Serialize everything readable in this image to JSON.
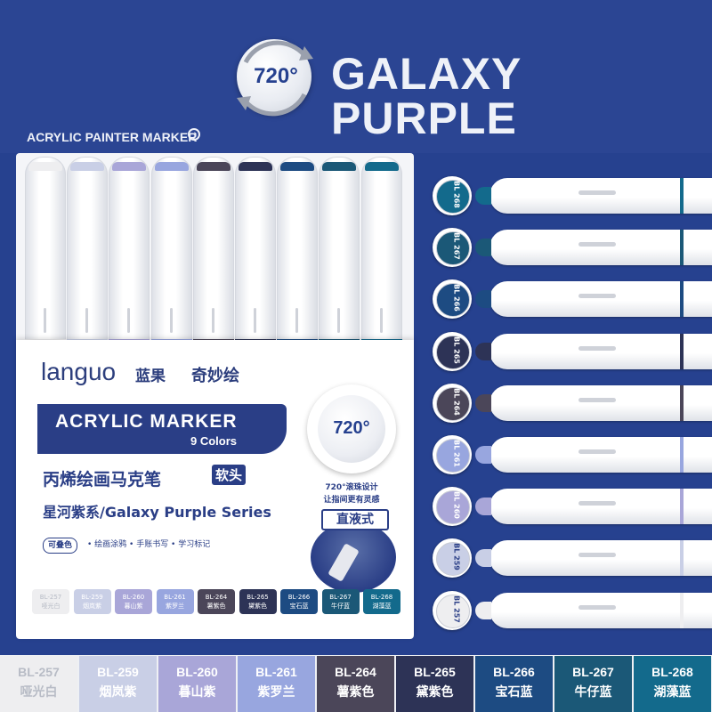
{
  "header": {
    "badge_text": "720°",
    "title": "GALAXY PURPLE",
    "subtitle": "ACRYLIC PAINTER MARKER",
    "subtitle_icon": "arrow-circle-icon"
  },
  "package": {
    "logo": "languo",
    "logo_cn": "蓝果",
    "brand2": "奇妙绘",
    "banner_main": "ACRYLIC MARKER",
    "banner_sub": "9 Colors",
    "cn_title": "丙烯绘画马克笔",
    "cn_tag": "软头",
    "series": "星河紫系/Galaxy Purple Series",
    "feature_chip": "可叠色",
    "features": "• 绘画涂鸦  • 手账书写  • 学习标记",
    "badge_720": "720°",
    "badge_line1": "720°滚珠设计",
    "badge_line2": "让指间更有灵感",
    "badge_box": "直液式"
  },
  "colors": [
    {
      "code": "BL-257",
      "name": "哑光白",
      "hex": "#eeeef0",
      "text": "#b8bcc6"
    },
    {
      "code": "BL-259",
      "name": "烟岚紫",
      "hex": "#c9cfe6",
      "text": "#ffffff"
    },
    {
      "code": "BL-260",
      "name": "暮山紫",
      "hex": "#a9a6d8",
      "text": "#ffffff"
    },
    {
      "code": "BL-261",
      "name": "紫罗兰",
      "hex": "#98a6df",
      "text": "#ffffff"
    },
    {
      "code": "BL-264",
      "name": "薯紫色",
      "hex": "#4b4659",
      "text": "#ffffff"
    },
    {
      "code": "BL-265",
      "name": "黛紫色",
      "hex": "#2d3356",
      "text": "#ffffff"
    },
    {
      "code": "BL-266",
      "name": "宝石蓝",
      "hex": "#1d4b82",
      "text": "#ffffff"
    },
    {
      "code": "BL-267",
      "name": "牛仔蓝",
      "hex": "#1b5877",
      "text": "#ffffff"
    },
    {
      "code": "BL-268",
      "name": "湖藻蓝",
      "hex": "#136a8c",
      "text": "#ffffff"
    }
  ],
  "side_markers": [
    {
      "label": "BL 268",
      "hex": "#136a8c"
    },
    {
      "label": "BL 267",
      "hex": "#1b5877"
    },
    {
      "label": "BL 266",
      "hex": "#1d4b82"
    },
    {
      "label": "BL 265",
      "hex": "#2d3356"
    },
    {
      "label": "BL 264",
      "hex": "#4b4659"
    },
    {
      "label": "BL 261",
      "hex": "#98a6df"
    },
    {
      "label": "BL 260",
      "hex": "#a9a6d8"
    },
    {
      "label": "BL 259",
      "hex": "#c9cfe6"
    },
    {
      "label": "BL 257",
      "hex": "#eeeef0"
    }
  ]
}
